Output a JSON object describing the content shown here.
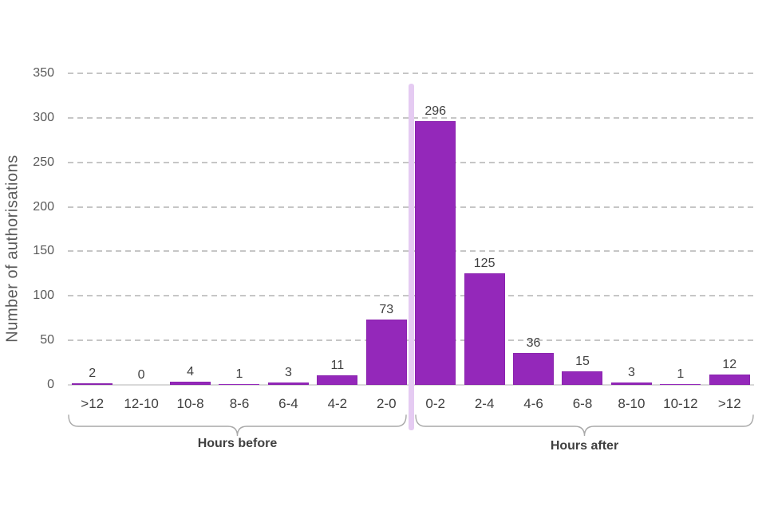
{
  "chart_data": {
    "type": "bar",
    "title": "",
    "ylabel": "Number of authorisations",
    "xlabel": "",
    "ylim": [
      0,
      350
    ],
    "ytick_step": 50,
    "yticks": [
      0,
      50,
      100,
      150,
      200,
      250,
      300,
      350
    ],
    "categories": [
      ">12",
      "12-10",
      "10-8",
      "8-6",
      "6-4",
      "4-2",
      "2-0",
      "0-2",
      "2-4",
      "4-6",
      "6-8",
      "8-10",
      "10-12",
      ">12"
    ],
    "values": [
      2,
      0,
      4,
      1,
      3,
      11,
      73,
      296,
      125,
      36,
      15,
      3,
      1,
      12
    ],
    "groups": [
      {
        "label": "Hours before",
        "from": 0,
        "to": 6
      },
      {
        "label": "Hours after",
        "from": 7,
        "to": 13
      }
    ],
    "grid": "horizontal-dashed",
    "legend": "none",
    "divider": "vertical line between 2-0 and 0-2",
    "colors": {
      "bar": "#9428BA",
      "bar_edge": "#8A23AE",
      "divider": "#E5CBF2",
      "grid": "#C6C6C6",
      "axis": "#D9D9D9",
      "text": "#404040",
      "muted_text": "#595959",
      "brace": "#A9A9A9"
    }
  }
}
